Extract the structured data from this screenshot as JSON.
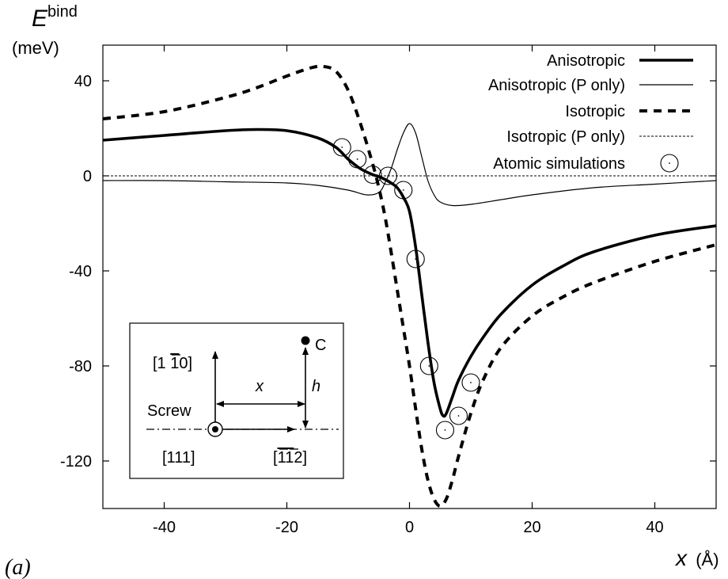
{
  "panel_label": "(a)",
  "chart_data": {
    "type": "line",
    "ylabel_main": "E",
    "ylabel_sup": "bind",
    "ylabel_unit": "(meV)",
    "xlabel_var": "x",
    "xlabel_unit": "(Å)",
    "xlim": [
      -50,
      50
    ],
    "ylim": [
      -140,
      55
    ],
    "xticks": [
      -40,
      -20,
      0,
      20,
      40
    ],
    "yticks": [
      40,
      0,
      -40,
      -80,
      -120
    ],
    "grid": false,
    "legend_position": "top-right",
    "series": [
      {
        "name": "Anisotropic",
        "style": "thick-solid",
        "x": [
          -50,
          -40,
          -30,
          -25,
          -20,
          -15,
          -12,
          -10,
          -8,
          -6,
          -5,
          -4,
          -3,
          -2,
          -1,
          0,
          1,
          2,
          3,
          4,
          5,
          5.5,
          6,
          7,
          8,
          10,
          12,
          15,
          20,
          25,
          30,
          40,
          50
        ],
        "y": [
          15,
          17,
          19,
          19.5,
          19,
          16,
          12,
          7,
          3,
          0.5,
          -0.3,
          -1.5,
          -3,
          -5,
          -9,
          -15,
          -30,
          -50,
          -70,
          -87,
          -98,
          -101,
          -100,
          -93,
          -86,
          -76,
          -68,
          -58,
          -46,
          -38,
          -32,
          -25,
          -21
        ]
      },
      {
        "name": "Anisotropic (P only)",
        "style": "thin-solid",
        "x": [
          -50,
          -40,
          -30,
          -20,
          -15,
          -10,
          -7,
          -5,
          -4,
          -3,
          -2,
          -1,
          0,
          1,
          2,
          3,
          4,
          5,
          7,
          10,
          15,
          20,
          30,
          40,
          50
        ],
        "y": [
          -2,
          -2,
          -2.5,
          -3,
          -4,
          -6,
          -8,
          -7,
          -3,
          3,
          11,
          18,
          22,
          18,
          8,
          -2,
          -8,
          -11,
          -12.5,
          -12,
          -10,
          -8,
          -5,
          -3.5,
          -2
        ]
      },
      {
        "name": "Isotropic",
        "style": "thick-dashed",
        "x": [
          -50,
          -40,
          -30,
          -25,
          -20,
          -16,
          -14,
          -12,
          -10,
          -8,
          -6,
          -5,
          -4,
          -3,
          -2,
          -1,
          0,
          1,
          2,
          3,
          4,
          5,
          6,
          7,
          8,
          10,
          12,
          15,
          20,
          25,
          30,
          40,
          50
        ],
        "y": [
          24,
          27,
          33,
          37,
          42,
          45.5,
          46,
          44,
          36,
          22,
          5,
          -5,
          -17,
          -32,
          -48,
          -64,
          -80,
          -98,
          -115,
          -128,
          -136,
          -139,
          -136,
          -128,
          -118,
          -100,
          -86,
          -72,
          -59,
          -51,
          -45,
          -36,
          -29
        ]
      },
      {
        "name": "Isotropic (P only)",
        "style": "thin-dashed",
        "x": [
          -50,
          50
        ],
        "y": [
          0,
          0
        ]
      },
      {
        "name": "Atomic simulations",
        "style": "circle-markers",
        "x": [
          -11,
          -8.5,
          -6,
          -3.5,
          -1,
          1,
          3.2,
          5.8,
          8,
          10
        ],
        "y": [
          12,
          7,
          0.5,
          0,
          -6,
          -35,
          -80,
          -107,
          -101,
          -87
        ]
      }
    ]
  },
  "inset": {
    "dir_vertical": "[1 1̄0]",
    "dir_vertical_base": "[1 ",
    "dir_vertical_bar": "1",
    "dir_vertical_end": "0]",
    "dir_line": "[111]",
    "dir_horizontal_open": "[",
    "dir_horizontal_bar1": "1",
    "dir_horizontal_bar2": "1",
    "dir_horizontal_end": "2]",
    "label_screw": "Screw",
    "label_x": "x",
    "label_h": "h",
    "label_c": "C"
  }
}
